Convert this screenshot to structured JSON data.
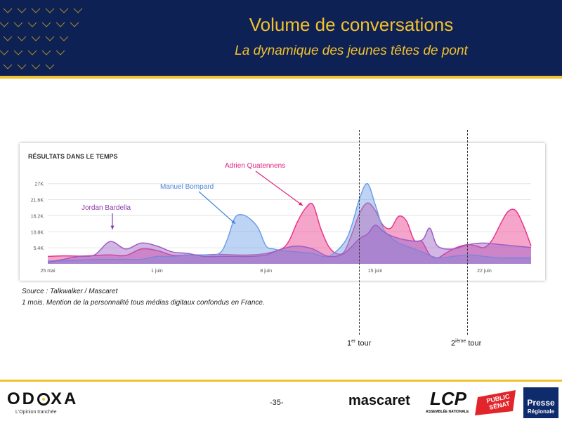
{
  "header": {
    "title": "Volume de conversations",
    "subtitle": "La dynamique des jeunes têtes de pont"
  },
  "chart_data": {
    "type": "area",
    "title": "RÉSULTATS DANS LE TEMPS",
    "y_ticks": [
      "5.4K",
      "10.8K",
      "16.2K",
      "21.6K",
      "27K"
    ],
    "y_tick_values": [
      5400,
      10800,
      16200,
      21600,
      27000
    ],
    "ylim": [
      0,
      30000
    ],
    "x_ticks": [
      "25 mai",
      "1 juin",
      "8 juin",
      "15 juin",
      "22 juin"
    ],
    "x_tick_days": [
      0,
      7,
      14,
      21,
      28
    ],
    "xlim": [
      0,
      31
    ],
    "grid": true,
    "series": [
      {
        "name": "Adrien Quatennens",
        "color": "#e8378a",
        "x": [
          0,
          1,
          2,
          3,
          4,
          5,
          6,
          7,
          8,
          9,
          10,
          11,
          12,
          13,
          14,
          15,
          15.5,
          16,
          16.5,
          17,
          17.5,
          18,
          18.5,
          19,
          19.5,
          20,
          20.5,
          21,
          21.5,
          22,
          22.5,
          23,
          23.5,
          24,
          24.5,
          25,
          25.5,
          26,
          26.5,
          27,
          27.5,
          28,
          28.5,
          29,
          29.5,
          30,
          30.5,
          31
        ],
        "y": [
          2500,
          2700,
          2600,
          2800,
          3000,
          2800,
          5000,
          4500,
          2900,
          3000,
          3000,
          3200,
          3000,
          3000,
          3500,
          5000,
          8000,
          14000,
          18500,
          20000,
          12000,
          6000,
          3500,
          4000,
          10000,
          17000,
          20500,
          18000,
          13000,
          12000,
          16000,
          14500,
          8000,
          7500,
          3000,
          2000,
          3500,
          5000,
          6000,
          6500,
          6000,
          5500,
          8000,
          13000,
          17500,
          18000,
          13000,
          6000
        ]
      },
      {
        "name": "Manuel Bompard",
        "color": "#6f9fe8",
        "x": [
          0,
          1,
          2,
          3,
          4,
          5,
          6,
          7,
          8,
          9,
          10,
          11,
          11.5,
          12,
          12.5,
          13,
          13.5,
          14,
          14.5,
          15,
          16,
          17,
          18,
          19,
          19.5,
          20,
          20.5,
          21,
          21.5,
          22,
          22.5,
          23,
          23.5,
          24,
          25,
          26,
          27,
          28,
          29,
          30,
          31
        ],
        "y": [
          1000,
          1000,
          1200,
          1500,
          1500,
          1500,
          1500,
          2500,
          2500,
          3000,
          3000,
          3500,
          8000,
          15500,
          16500,
          15000,
          12000,
          6000,
          5000,
          4500,
          4000,
          3500,
          2500,
          7000,
          13000,
          22000,
          27000,
          20000,
          12000,
          9000,
          7000,
          6000,
          5000,
          4000,
          2000,
          2500,
          3000,
          2500,
          2000,
          2000,
          2000
        ]
      },
      {
        "name": "Jordan Bardella",
        "color": "#9b5fc6",
        "x": [
          0,
          1,
          2,
          3,
          4,
          5,
          6,
          7,
          8,
          9,
          10,
          11,
          12,
          13,
          14,
          15,
          16,
          17,
          18,
          19,
          20,
          20.5,
          21,
          21.5,
          22,
          23,
          24,
          24.5,
          25,
          26,
          27,
          28,
          29,
          30,
          31
        ],
        "y": [
          500,
          1500,
          2500,
          3000,
          7500,
          5000,
          7000,
          6000,
          4000,
          3500,
          2500,
          2500,
          2500,
          2500,
          3000,
          5000,
          6000,
          5000,
          2500,
          3500,
          8500,
          10000,
          13000,
          11000,
          9500,
          8000,
          8000,
          12000,
          6000,
          5000,
          6500,
          7000,
          6500,
          6000,
          5500
        ]
      }
    ],
    "annotations": [
      {
        "label": "Jordan Bardella",
        "color": "#8a3aa8"
      },
      {
        "label": "Manuel Bompard",
        "color": "#4a86d8"
      },
      {
        "label": "Adrien Quatennens",
        "color": "#e0217c"
      }
    ]
  },
  "source": {
    "line1": "Source : Talkwalker / Mascaret",
    "line2": "1 mois. Mention de la personnalité tous médias digitaux confondus en France."
  },
  "rounds": {
    "first": {
      "prefix": "1",
      "sup": "er",
      "suffix": " tour"
    },
    "second": {
      "prefix": "2",
      "sup": "ième",
      "suffix": " tour"
    }
  },
  "footer": {
    "odoxa_letters": [
      "OD",
      "XA"
    ],
    "odoxa_tagline": "L'Opinion tranchée",
    "page_number": "-35-",
    "mascaret": "mascaret",
    "lcp": "LCP",
    "lcp_sub": "ASSEMBLÉE NATIONALE",
    "public_senat_1": "PUBLIC",
    "public_senat_2": "SÉNAT",
    "presse_1": "Presse",
    "presse_2": "Régionale"
  }
}
